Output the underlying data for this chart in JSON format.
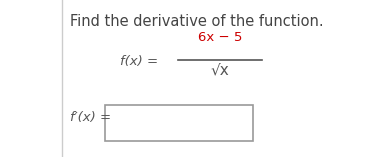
{
  "title": "Find the derivative of the function.",
  "title_color": "#444444",
  "title_fontsize": 10.5,
  "fx_italic": "f(x) =",
  "fx_color": "#555555",
  "numerator": "6x − 5",
  "numerator_color": "#cc0000",
  "denom": "√x",
  "denom_color": "#555555",
  "fpx_label": "f′(x) =",
  "fpx_color": "#555555",
  "bg_color": "#ffffff",
  "left_border_color": "#cccccc",
  "box_edge_color": "#999999",
  "figsize": [
    3.79,
    1.57
  ],
  "dpi": 100
}
